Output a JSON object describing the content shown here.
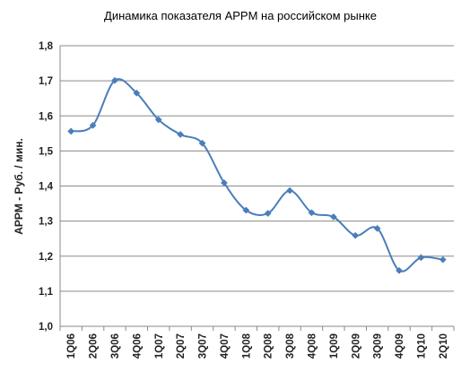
{
  "chart_data": {
    "type": "line",
    "title": "Динамика показателя APPM на российском рынке",
    "xlabel": "",
    "ylabel": "APPM - Руб. / мин.",
    "ylim": [
      1.0,
      1.8
    ],
    "yticks": [
      "1,0",
      "1,1",
      "1,2",
      "1,3",
      "1,4",
      "1,5",
      "1,6",
      "1,7",
      "1,8"
    ],
    "grid": "horizontal",
    "smooth": true,
    "categories": [
      "1Q06",
      "2Q06",
      "3Q06",
      "4Q06",
      "1Q07",
      "2Q07",
      "3Q07",
      "4Q07",
      "1Q08",
      "2Q08",
      "3Q08",
      "4Q08",
      "1Q09",
      "2Q09",
      "3Q09",
      "4Q09",
      "1Q10",
      "2Q10"
    ],
    "series": [
      {
        "values": [
          1.556,
          1.573,
          1.701,
          1.665,
          1.589,
          1.547,
          1.522,
          1.409,
          1.331,
          1.322,
          1.387,
          1.324,
          1.312,
          1.259,
          1.279,
          1.159,
          1.196,
          1.19
        ],
        "color": "#4a7ebb"
      }
    ]
  }
}
